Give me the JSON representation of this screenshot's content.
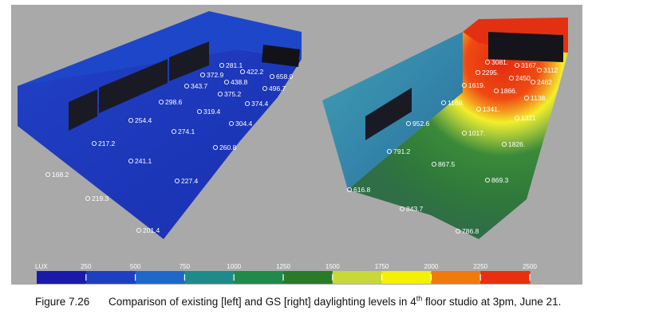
{
  "scale": {
    "unit": "LUX",
    "ticks": [
      "250",
      "500",
      "750",
      "1000",
      "1250",
      "1500",
      "1750",
      "2000",
      "2250",
      "2500"
    ],
    "colors": [
      "#1a1aa8",
      "#1e3fc0",
      "#1f67c8",
      "#1f8a8a",
      "#1f8a4a",
      "#2a7a2a",
      "#c8d83a",
      "#f4f000",
      "#f07a10",
      "#e83010"
    ]
  },
  "left_panel": {
    "readings": [
      "281.1",
      "422.2",
      "658.0",
      "372.9",
      "438.8",
      "496.7",
      "343.7",
      "375.2",
      "298.6",
      "374.4",
      "319.4",
      "254.4",
      "304.4",
      "274.1",
      "217.2",
      "260.8",
      "241.1",
      "168.2",
      "227.4",
      "219.3",
      "201.4"
    ]
  },
  "right_panel": {
    "readings": [
      "3081.",
      "3167.",
      "3112",
      "2295.",
      "2450.",
      "2462",
      "1619.",
      "1866.",
      "1138.",
      "1169.",
      "1341.",
      "1321",
      "952.6",
      "1017.",
      "1826.",
      "791.2",
      "867.5",
      "869.3",
      "616.8",
      "843.7",
      "786.8"
    ]
  },
  "caption": {
    "label": "Figure 7.26",
    "text_a": "Comparison of existing [left] and GS [right] daylighting levels in 4",
    "sup": "th",
    "text_b": " floor studio at 3pm, June 21."
  }
}
